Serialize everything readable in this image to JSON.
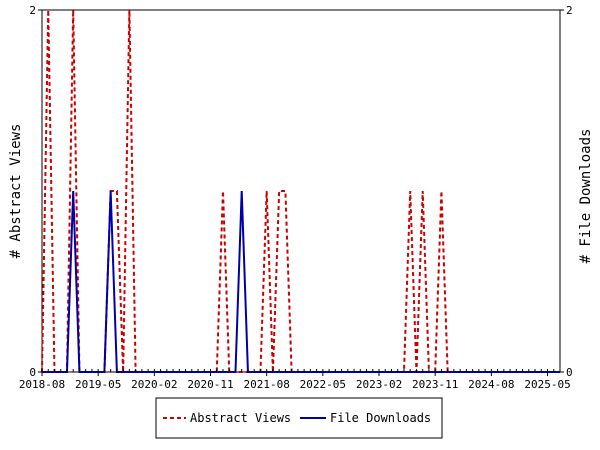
{
  "chart_data": {
    "type": "line",
    "ylabel_left": "# Abstract Views",
    "ylabel_right": "# File Downloads",
    "ylim": [
      0,
      2
    ],
    "y_ticks": [
      "0",
      "2"
    ],
    "x_ticks": [
      "2018-08",
      "2019-05",
      "2020-02",
      "2020-11",
      "2021-08",
      "2022-05",
      "2023-02",
      "2023-11",
      "2024-08",
      "2025-05"
    ],
    "x_range": [
      "2018-08",
      "2025-07"
    ],
    "grid": false,
    "legend_position": "bottom-center",
    "series": [
      {
        "name": "Abstract Views",
        "color": "#cc0000",
        "style": "dashed",
        "points": [
          [
            "2018-08",
            0
          ],
          [
            "2018-09",
            2
          ],
          [
            "2018-10",
            0
          ],
          [
            "2018-11",
            0
          ],
          [
            "2018-12",
            0
          ],
          [
            "2019-01",
            2
          ],
          [
            "2019-02",
            0
          ],
          [
            "2019-03",
            0
          ],
          [
            "2019-04",
            0
          ],
          [
            "2019-05",
            0
          ],
          [
            "2019-06",
            0
          ],
          [
            "2019-07",
            1
          ],
          [
            "2019-08",
            1
          ],
          [
            "2019-09",
            0
          ],
          [
            "2019-10",
            2
          ],
          [
            "2019-11",
            0
          ],
          [
            "2019-12",
            0
          ],
          [
            "2020-01",
            0
          ],
          [
            "2020-02",
            0
          ],
          [
            "2020-03",
            0
          ],
          [
            "2020-04",
            0
          ],
          [
            "2020-05",
            0
          ],
          [
            "2020-06",
            0
          ],
          [
            "2020-07",
            0
          ],
          [
            "2020-08",
            0
          ],
          [
            "2020-09",
            0
          ],
          [
            "2020-10",
            0
          ],
          [
            "2020-11",
            0
          ],
          [
            "2020-12",
            0
          ],
          [
            "2021-01",
            1
          ],
          [
            "2021-02",
            0
          ],
          [
            "2021-03",
            0
          ],
          [
            "2021-04",
            0
          ],
          [
            "2021-05",
            0
          ],
          [
            "2021-06",
            0
          ],
          [
            "2021-07",
            0
          ],
          [
            "2021-08",
            1
          ],
          [
            "2021-09",
            0
          ],
          [
            "2021-10",
            1
          ],
          [
            "2021-11",
            1
          ],
          [
            "2021-12",
            0
          ],
          [
            "2022-01",
            0
          ],
          [
            "2022-02",
            0
          ],
          [
            "2022-03",
            0
          ],
          [
            "2022-04",
            0
          ],
          [
            "2022-05",
            0
          ],
          [
            "2022-06",
            0
          ],
          [
            "2022-07",
            0
          ],
          [
            "2022-08",
            0
          ],
          [
            "2022-09",
            0
          ],
          [
            "2022-10",
            0
          ],
          [
            "2022-11",
            0
          ],
          [
            "2022-12",
            0
          ],
          [
            "2023-01",
            0
          ],
          [
            "2023-02",
            0
          ],
          [
            "2023-03",
            0
          ],
          [
            "2023-04",
            0
          ],
          [
            "2023-05",
            0
          ],
          [
            "2023-06",
            0
          ],
          [
            "2023-07",
            1
          ],
          [
            "2023-08",
            0
          ],
          [
            "2023-09",
            1
          ],
          [
            "2023-10",
            0
          ],
          [
            "2023-11",
            0
          ],
          [
            "2023-12",
            1
          ],
          [
            "2024-01",
            0
          ],
          [
            "2024-02",
            0
          ],
          [
            "2024-03",
            0
          ],
          [
            "2024-04",
            0
          ],
          [
            "2024-05",
            0
          ],
          [
            "2024-06",
            0
          ],
          [
            "2024-07",
            0
          ],
          [
            "2024-08",
            0
          ],
          [
            "2024-09",
            0
          ],
          [
            "2024-10",
            0
          ],
          [
            "2024-11",
            0
          ],
          [
            "2024-12",
            0
          ],
          [
            "2025-01",
            0
          ],
          [
            "2025-02",
            0
          ],
          [
            "2025-03",
            0
          ],
          [
            "2025-04",
            0
          ],
          [
            "2025-05",
            0
          ],
          [
            "2025-06",
            0
          ],
          [
            "2025-07",
            0
          ]
        ]
      },
      {
        "name": "File Downloads",
        "color": "#0000aa",
        "style": "solid",
        "points": [
          [
            "2018-08",
            0
          ],
          [
            "2018-09",
            0
          ],
          [
            "2018-10",
            0
          ],
          [
            "2018-11",
            0
          ],
          [
            "2018-12",
            0
          ],
          [
            "2019-01",
            1
          ],
          [
            "2019-02",
            0
          ],
          [
            "2019-03",
            0
          ],
          [
            "2019-04",
            0
          ],
          [
            "2019-05",
            0
          ],
          [
            "2019-06",
            0
          ],
          [
            "2019-07",
            1
          ],
          [
            "2019-08",
            0
          ],
          [
            "2019-09",
            0
          ],
          [
            "2019-10",
            0
          ],
          [
            "2019-11",
            0
          ],
          [
            "2019-12",
            0
          ],
          [
            "2020-01",
            0
          ],
          [
            "2020-02",
            0
          ],
          [
            "2020-03",
            0
          ],
          [
            "2020-04",
            0
          ],
          [
            "2020-05",
            0
          ],
          [
            "2020-06",
            0
          ],
          [
            "2020-07",
            0
          ],
          [
            "2020-08",
            0
          ],
          [
            "2020-09",
            0
          ],
          [
            "2020-10",
            0
          ],
          [
            "2020-11",
            0
          ],
          [
            "2020-12",
            0
          ],
          [
            "2021-01",
            0
          ],
          [
            "2021-02",
            0
          ],
          [
            "2021-03",
            0
          ],
          [
            "2021-04",
            1
          ],
          [
            "2021-05",
            0
          ],
          [
            "2021-06",
            0
          ],
          [
            "2021-07",
            0
          ],
          [
            "2021-08",
            0
          ],
          [
            "2021-09",
            0
          ],
          [
            "2021-10",
            0
          ],
          [
            "2021-11",
            0
          ],
          [
            "2021-12",
            0
          ],
          [
            "2022-01",
            0
          ],
          [
            "2022-02",
            0
          ],
          [
            "2022-03",
            0
          ],
          [
            "2022-04",
            0
          ],
          [
            "2022-05",
            0
          ],
          [
            "2022-06",
            0
          ],
          [
            "2022-07",
            0
          ],
          [
            "2022-08",
            0
          ],
          [
            "2022-09",
            0
          ],
          [
            "2022-10",
            0
          ],
          [
            "2022-11",
            0
          ],
          [
            "2022-12",
            0
          ],
          [
            "2023-01",
            0
          ],
          [
            "2023-02",
            0
          ],
          [
            "2023-03",
            0
          ],
          [
            "2023-04",
            0
          ],
          [
            "2023-05",
            0
          ],
          [
            "2023-06",
            0
          ],
          [
            "2023-07",
            0
          ],
          [
            "2023-08",
            0
          ],
          [
            "2023-09",
            0
          ],
          [
            "2023-10",
            0
          ],
          [
            "2023-11",
            0
          ],
          [
            "2023-12",
            0
          ],
          [
            "2024-01",
            0
          ],
          [
            "2024-02",
            0
          ],
          [
            "2024-03",
            0
          ],
          [
            "2024-04",
            0
          ],
          [
            "2024-05",
            0
          ],
          [
            "2024-06",
            0
          ],
          [
            "2024-07",
            0
          ],
          [
            "2024-08",
            0
          ],
          [
            "2024-09",
            0
          ],
          [
            "2024-10",
            0
          ],
          [
            "2024-11",
            0
          ],
          [
            "2024-12",
            0
          ],
          [
            "2025-01",
            0
          ],
          [
            "2025-02",
            0
          ],
          [
            "2025-03",
            0
          ],
          [
            "2025-04",
            0
          ],
          [
            "2025-05",
            0
          ],
          [
            "2025-06",
            0
          ],
          [
            "2025-07",
            0
          ]
        ]
      }
    ]
  }
}
